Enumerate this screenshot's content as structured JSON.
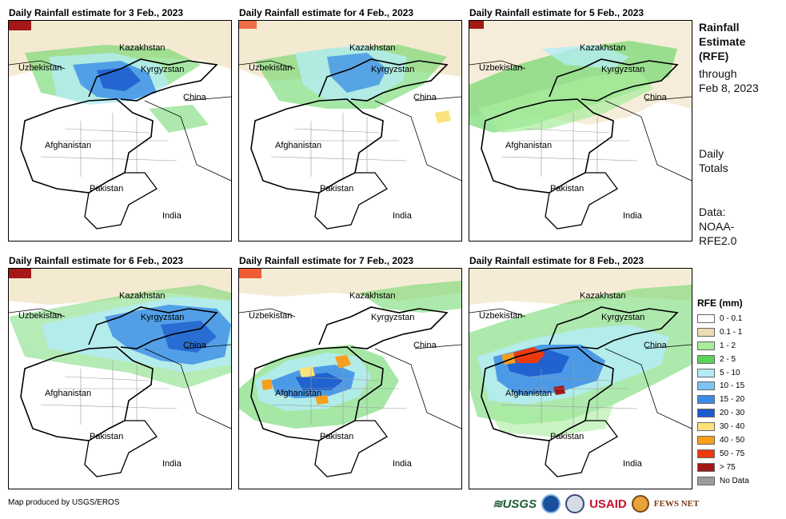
{
  "panels": [
    {
      "title": "Daily Rainfall estimate for 3 Feb., 2023"
    },
    {
      "title": "Daily Rainfall estimate for 4 Feb., 2023"
    },
    {
      "title": "Daily Rainfall estimate for 5 Feb., 2023"
    },
    {
      "title": "Daily Rainfall estimate for 6 Feb., 2023"
    },
    {
      "title": "Daily Rainfall estimate for 7 Feb., 2023"
    },
    {
      "title": "Daily Rainfall estimate for 8 Feb., 2023"
    }
  ],
  "countries": {
    "kazakhstan": "Kazakhstan",
    "uzbekistan": "Uzbekistan",
    "kyrgyzstan": "Kyrgyzstan",
    "china": "China",
    "afghanistan": "Afghanistan",
    "pakistan": "Pakistan",
    "india": "India"
  },
  "side": {
    "title_lines": [
      "Rainfall",
      "Estimate",
      "(RFE)"
    ],
    "through_lines": [
      "through",
      "Feb 8, 2023"
    ],
    "daily_lines": [
      "Daily",
      "Totals"
    ],
    "data_lines": [
      "Data:",
      "NOAA-",
      "RFE2.0"
    ]
  },
  "legend": {
    "title": "RFE (mm)",
    "items": [
      {
        "label": "0 - 0.1",
        "color": "#ffffff"
      },
      {
        "label": "0.1 - 1",
        "color": "#ecdcb4"
      },
      {
        "label": "1 - 2",
        "color": "#a8ec9c"
      },
      {
        "label": "2 - 5",
        "color": "#5cd35c"
      },
      {
        "label": "5 - 10",
        "color": "#b4ecf4"
      },
      {
        "label": "10 - 15",
        "color": "#7cc4f4"
      },
      {
        "label": "15 - 20",
        "color": "#3a8ce6"
      },
      {
        "label": "20 - 30",
        "color": "#1c5ccc"
      },
      {
        "label": "30 - 40",
        "color": "#fce27c"
      },
      {
        "label": "40 - 50",
        "color": "#f8a01c"
      },
      {
        "label": "50 - 75",
        "color": "#ec3a0c"
      },
      {
        "label": "> 75",
        "color": "#a41818"
      },
      {
        "label": "No Data",
        "color": "#9c9c9c"
      }
    ]
  },
  "credit": "Map produced by USGS/EROS",
  "logos": {
    "usgs": "USGS",
    "usaid": "USAID",
    "fews": "FEWS NET"
  }
}
